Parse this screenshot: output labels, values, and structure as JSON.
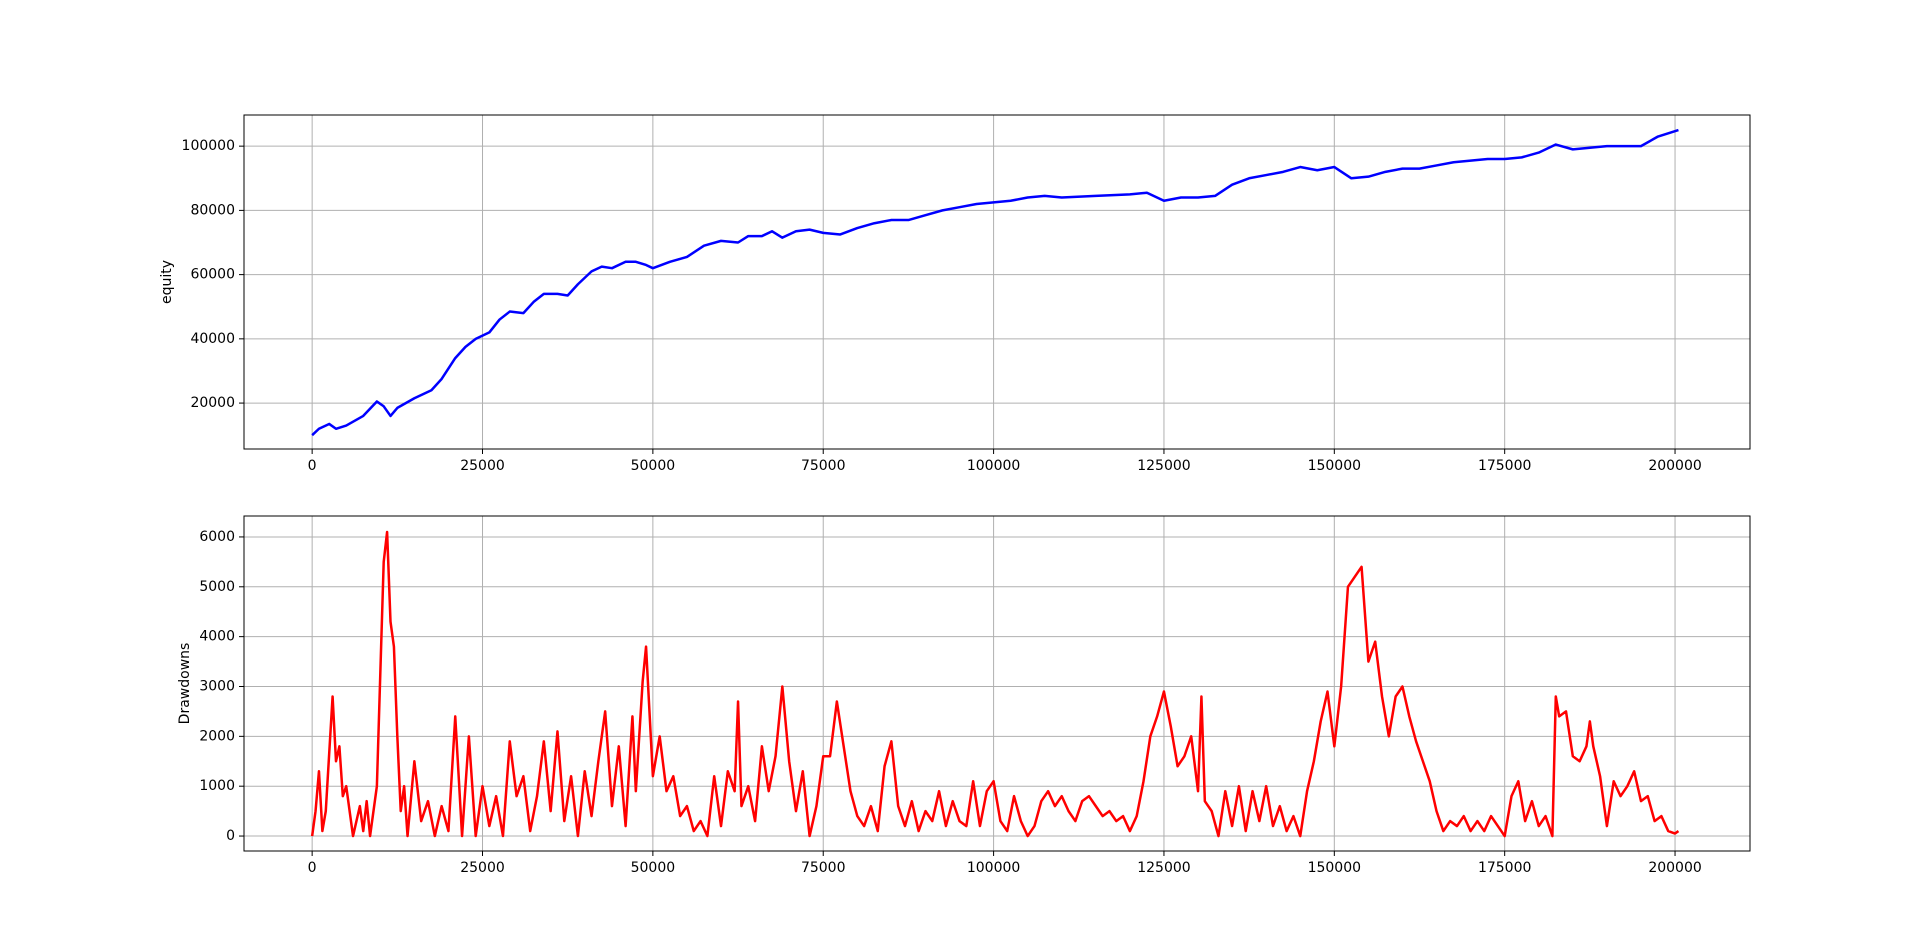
{
  "chart_data": [
    {
      "type": "line",
      "ylabel": "equity",
      "color": "#0000ff",
      "grid": true,
      "x": [
        0,
        1000,
        2500,
        3500,
        5000,
        7500,
        9500,
        10500,
        11500,
        12500,
        15000,
        17500,
        19000,
        21000,
        22500,
        24000,
        26000,
        27500,
        29000,
        31000,
        32500,
        34000,
        36000,
        37500,
        39000,
        41000,
        42500,
        44000,
        46000,
        47500,
        49000,
        50000,
        52500,
        55000,
        57500,
        60000,
        62500,
        64000,
        66000,
        67500,
        69000,
        71000,
        73000,
        75000,
        77500,
        80000,
        82500,
        85000,
        87500,
        90000,
        92500,
        95000,
        97500,
        100000,
        102500,
        105000,
        107500,
        110000,
        115000,
        120000,
        122500,
        125000,
        127500,
        130000,
        132500,
        135000,
        137500,
        140000,
        142500,
        145000,
        147500,
        150000,
        152500,
        155000,
        157500,
        160000,
        162500,
        165000,
        167500,
        170000,
        172500,
        175000,
        177500,
        180000,
        182500,
        185000,
        187500,
        190000,
        192500,
        195000,
        197500,
        200500
      ],
      "values": [
        10000,
        12000,
        13500,
        12000,
        13000,
        16000,
        20500,
        19000,
        16000,
        18500,
        21500,
        24000,
        27500,
        34000,
        37500,
        40000,
        42000,
        46000,
        48500,
        48000,
        51500,
        54000,
        54000,
        53500,
        57000,
        61000,
        62500,
        62000,
        64000,
        64000,
        63000,
        62000,
        64000,
        65500,
        69000,
        70500,
        70000,
        72000,
        72000,
        73500,
        71500,
        73500,
        74000,
        73000,
        72500,
        74500,
        76000,
        77000,
        77000,
        78500,
        80000,
        81000,
        82000,
        82500,
        83000,
        84000,
        84500,
        84000,
        84500,
        85000,
        85500,
        83000,
        84000,
        84000,
        84500,
        88000,
        90000,
        91000,
        92000,
        93500,
        92500,
        93500,
        90000,
        90500,
        92000,
        93000,
        93000,
        94000,
        95000,
        95500,
        96000,
        96000,
        96500,
        98000,
        100500,
        99000,
        99500,
        100000,
        100000,
        100000,
        103000,
        105000
      ],
      "xlim": [
        -10000,
        211000
      ],
      "xticks": [
        0,
        25000,
        50000,
        75000,
        100000,
        125000,
        150000,
        175000,
        200000
      ],
      "ylim": [
        5700,
        109700
      ],
      "yticks": [
        20000,
        40000,
        60000,
        80000,
        100000
      ]
    },
    {
      "type": "line",
      "ylabel": "Drawdowns",
      "color": "#ff0000",
      "grid": true,
      "x": [
        0,
        500,
        1000,
        1500,
        2000,
        3000,
        3500,
        4000,
        4500,
        5000,
        6000,
        7000,
        7500,
        8000,
        8500,
        9500,
        10500,
        11000,
        11500,
        12000,
        12500,
        13000,
        13500,
        14000,
        15000,
        16000,
        17000,
        18000,
        19000,
        20000,
        21000,
        21500,
        22000,
        22500,
        23000,
        24000,
        25000,
        26000,
        27000,
        28000,
        29000,
        30000,
        31000,
        32000,
        33000,
        34000,
        35000,
        36000,
        37000,
        38000,
        39000,
        40000,
        41000,
        42000,
        43000,
        44000,
        45000,
        46000,
        47000,
        47500,
        48500,
        49000,
        49500,
        50000,
        51000,
        52000,
        53000,
        54000,
        55000,
        56000,
        57000,
        58000,
        59000,
        60000,
        61000,
        62000,
        62500,
        63000,
        64000,
        65000,
        66000,
        67000,
        68000,
        69000,
        70000,
        71000,
        72000,
        73000,
        74000,
        75000,
        76000,
        77000,
        78000,
        79000,
        80000,
        81000,
        82000,
        83000,
        84000,
        85000,
        86000,
        87000,
        88000,
        89000,
        90000,
        91000,
        92000,
        93000,
        94000,
        95000,
        96000,
        97000,
        98000,
        99000,
        100000,
        101000,
        102000,
        103000,
        104000,
        105000,
        106000,
        107000,
        108000,
        109000,
        110000,
        111000,
        112000,
        113000,
        114000,
        115000,
        116000,
        117000,
        118000,
        119000,
        120000,
        121000,
        122000,
        123000,
        124000,
        125000,
        126000,
        127000,
        128000,
        129000,
        130000,
        130500,
        131000,
        132000,
        133000,
        134000,
        135000,
        136000,
        137000,
        138000,
        139000,
        140000,
        141000,
        142000,
        143000,
        144000,
        145000,
        146000,
        147000,
        148000,
        149000,
        150000,
        151000,
        152000,
        153000,
        154000,
        155000,
        156000,
        157000,
        158000,
        159000,
        160000,
        161000,
        162000,
        163000,
        164000,
        165000,
        166000,
        167000,
        168000,
        169000,
        170000,
        171000,
        172000,
        173000,
        174000,
        175000,
        176000,
        177000,
        178000,
        179000,
        180000,
        181000,
        182000,
        182500,
        183000,
        184000,
        185000,
        186000,
        187000,
        187500,
        188000,
        189000,
        190000,
        191000,
        192000,
        193000,
        194000,
        195000,
        196000,
        197000,
        198000,
        199000,
        200000,
        200500
      ],
      "values": [
        0,
        500,
        1300,
        100,
        500,
        2800,
        1500,
        1800,
        800,
        1000,
        0,
        600,
        100,
        700,
        0,
        1000,
        5500,
        6100,
        4300,
        3800,
        2000,
        500,
        1000,
        0,
        1500,
        300,
        700,
        0,
        600,
        100,
        2400,
        1200,
        0,
        1000,
        2000,
        0,
        1000,
        200,
        800,
        0,
        1900,
        800,
        1200,
        100,
        800,
        1900,
        500,
        2100,
        300,
        1200,
        0,
        1300,
        400,
        1500,
        2500,
        600,
        1800,
        200,
        2400,
        900,
        3100,
        3800,
        2500,
        1200,
        2000,
        900,
        1200,
        400,
        600,
        100,
        300,
        0,
        1200,
        200,
        1300,
        900,
        2700,
        600,
        1000,
        300,
        1800,
        900,
        1600,
        3000,
        1500,
        500,
        1300,
        0,
        600,
        1600,
        1600,
        2700,
        1800,
        900,
        400,
        200,
        600,
        100,
        1400,
        1900,
        600,
        200,
        700,
        100,
        500,
        300,
        900,
        200,
        700,
        300,
        200,
        1100,
        200,
        900,
        1100,
        300,
        100,
        800,
        300,
        0,
        200,
        700,
        900,
        600,
        800,
        500,
        300,
        700,
        800,
        600,
        400,
        500,
        300,
        400,
        100,
        400,
        1100,
        2000,
        2400,
        2900,
        2200,
        1400,
        1600,
        2000,
        900,
        2800,
        700,
        500,
        0,
        900,
        200,
        1000,
        100,
        900,
        300,
        1000,
        200,
        600,
        100,
        400,
        0,
        900,
        1500,
        2300,
        2900,
        1800,
        3000,
        5000,
        5200,
        5400,
        3500,
        3900,
        2800,
        2000,
        2800,
        3000,
        2400,
        1900,
        1500,
        1100,
        500,
        100,
        300,
        200,
        400,
        100,
        300,
        100,
        400,
        200,
        0,
        800,
        1100,
        300,
        700,
        200,
        400,
        0,
        2800,
        2400,
        2500,
        1600,
        1500,
        1800,
        2300,
        1800,
        1200,
        200,
        1100,
        800,
        1000,
        1300,
        700,
        800,
        300,
        400,
        100,
        50,
        100
      ],
      "xlim": [
        -10000,
        211000
      ],
      "xticks": [
        0,
        25000,
        50000,
        75000,
        100000,
        125000,
        150000,
        175000,
        200000
      ],
      "ylim": [
        -300,
        6420
      ],
      "yticks": [
        0,
        1000,
        2000,
        3000,
        4000,
        5000,
        6000
      ]
    }
  ]
}
